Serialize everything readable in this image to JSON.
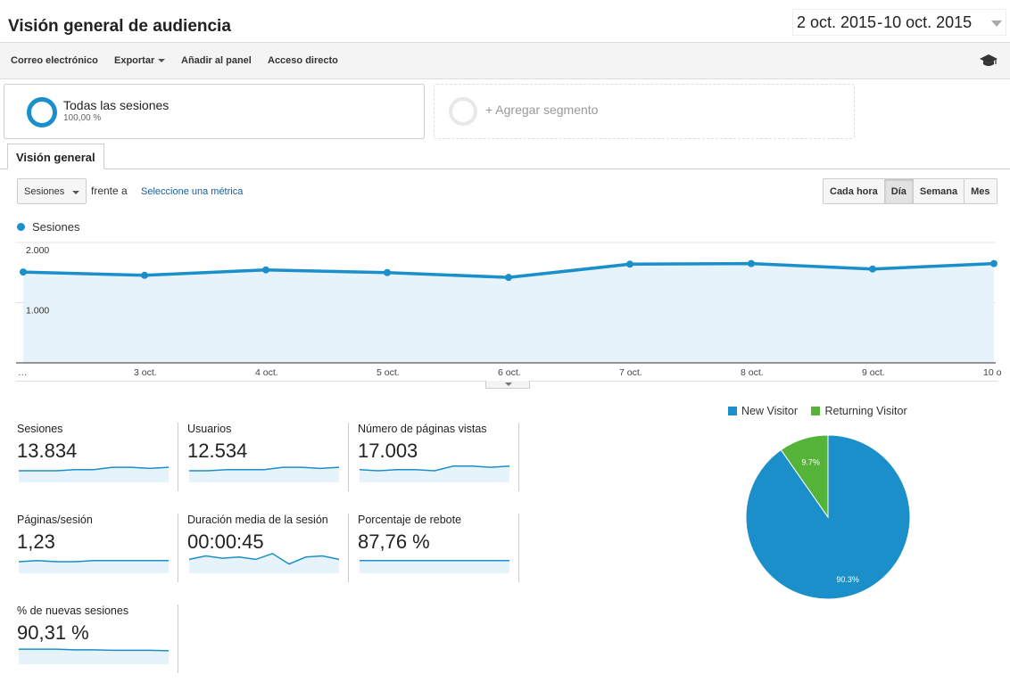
{
  "header": {
    "title": "Visión general de audiencia",
    "date_start": "2 oct. 2015",
    "date_sep": "-",
    "date_end": "10 oct. 2015"
  },
  "toolbar": {
    "email": "Correo electrónico",
    "export": "Exportar",
    "add_dashboard": "Añadir al panel",
    "shortcut": "Acceso directo"
  },
  "segments": {
    "active_name": "Todas las sesiones",
    "active_pct": "100,00 %",
    "add_label": "+ Agregar segmento"
  },
  "tabs": {
    "overview": "Visión general"
  },
  "chart_controls": {
    "metric": "Sesiones",
    "versus": "frente a",
    "select_metric": "Seleccione una métrica",
    "granularity": [
      {
        "label": "Cada hora",
        "active": false
      },
      {
        "label": "Día",
        "active": true
      },
      {
        "label": "Semana",
        "active": false
      },
      {
        "label": "Mes",
        "active": false
      }
    ]
  },
  "colors": {
    "accent": "#1a8fc9",
    "area_fill": "#e6f3fa",
    "pie_new": "#1a8fc9",
    "pie_returning": "#55b339"
  },
  "chart_data": [
    {
      "type": "area",
      "series": [
        {
          "name": "Sesiones",
          "values": [
            1510,
            1455,
            1545,
            1500,
            1420,
            1640,
            1650,
            1560,
            1650
          ]
        }
      ],
      "x_ticks": [
        "…",
        "3 oct.",
        "4 oct.",
        "5 oct.",
        "6 oct.",
        "7 oct.",
        "8 oct.",
        "9 oct.",
        "10 o"
      ],
      "y_ticks": [
        "2.000",
        "1.000"
      ],
      "ylim": [
        0,
        2000
      ],
      "grid": true
    },
    {
      "type": "pie",
      "categories": [
        "New Visitor",
        "Returning Visitor"
      ],
      "values": [
        90.3,
        9.7
      ],
      "labels": [
        "90.3%",
        "9.7%"
      ],
      "legend": "top"
    }
  ],
  "metrics": [
    {
      "name": "Sesiones",
      "value": "13.834",
      "spark": [
        0.5,
        0.5,
        0.5,
        0.45,
        0.45,
        0.35,
        0.35,
        0.4,
        0.35
      ]
    },
    {
      "name": "Usuarios",
      "value": "12.534",
      "spark": [
        0.5,
        0.5,
        0.45,
        0.45,
        0.45,
        0.35,
        0.35,
        0.4,
        0.35
      ]
    },
    {
      "name": "Número de páginas vistas",
      "value": "17.003",
      "spark": [
        0.45,
        0.5,
        0.45,
        0.45,
        0.5,
        0.3,
        0.3,
        0.35,
        0.3
      ]
    },
    {
      "name": "Páginas/sesión",
      "value": "1,23",
      "spark": [
        0.5,
        0.45,
        0.5,
        0.5,
        0.45,
        0.45,
        0.45,
        0.45,
        0.45
      ]
    },
    {
      "name": "Duración media de la sesión",
      "value": "00:00:45",
      "spark": [
        0.4,
        0.25,
        0.35,
        0.3,
        0.4,
        0.15,
        0.6,
        0.3,
        0.25,
        0.4
      ]
    },
    {
      "name": "Porcentaje de rebote",
      "value": "87,76 %",
      "spark": [
        0.45,
        0.45,
        0.45,
        0.45,
        0.45,
        0.45,
        0.45,
        0.45,
        0.45
      ]
    },
    {
      "name": "% de nuevas sesiones",
      "value": "90,31 %",
      "spark": [
        0.35,
        0.35,
        0.35,
        0.38,
        0.38,
        0.4,
        0.4,
        0.4,
        0.42
      ]
    }
  ]
}
